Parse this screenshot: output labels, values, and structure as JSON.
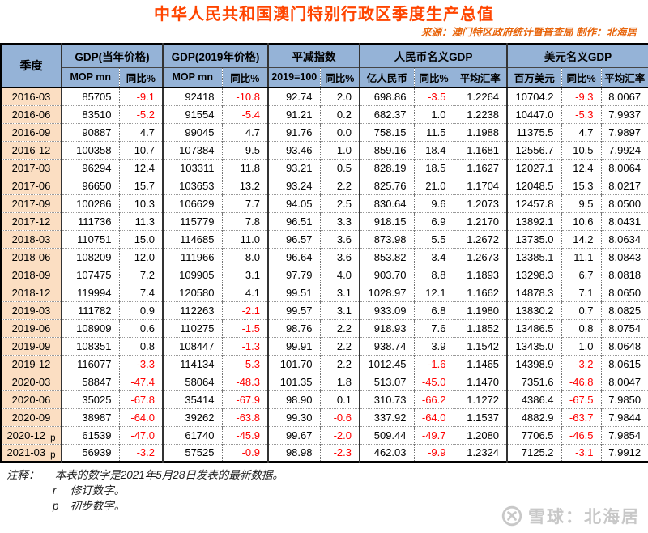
{
  "header": {
    "title": "中华人民共和国澳门特别行政区季度生产总值",
    "source_line": "来源：澳门特区政府统计暨普查局  制作：北海居"
  },
  "chart_data": {
    "type": "table",
    "title": "中华人民共和国澳门特别行政区季度生产总值",
    "quarter_header": "季度",
    "column_groups": [
      {
        "label": "GDP(当年价格)",
        "span": 2
      },
      {
        "label": "GDP(2019年价格)",
        "span": 2
      },
      {
        "label": "平减指数",
        "span": 2
      },
      {
        "label": "人民币名义GDP",
        "span": 3
      },
      {
        "label": "美元名义GDP",
        "span": 3
      }
    ],
    "columns": [
      "MOP mn",
      "同比%",
      "MOP mn",
      "同比%",
      "2019=100",
      "同比%",
      "亿人民币",
      "同比%",
      "平均汇率",
      "百万美元",
      "同比%",
      "平均汇率"
    ],
    "rows": [
      {
        "quarter": "2016-03",
        "flag": "",
        "values": [
          "85705",
          "-9.1",
          "92418",
          "-10.8",
          "92.74",
          "2.0",
          "698.86",
          "-3.5",
          "1.2264",
          "10704.2",
          "-9.3",
          "8.0067"
        ]
      },
      {
        "quarter": "2016-06",
        "flag": "",
        "values": [
          "83510",
          "-5.2",
          "91554",
          "-5.4",
          "91.21",
          "0.2",
          "682.37",
          "1.0",
          "1.2238",
          "10447.0",
          "-5.3",
          "7.9937"
        ]
      },
      {
        "quarter": "2016-09",
        "flag": "",
        "values": [
          "90887",
          "4.7",
          "99045",
          "4.7",
          "91.76",
          "0.0",
          "758.15",
          "11.5",
          "1.1988",
          "11375.5",
          "4.7",
          "7.9897"
        ]
      },
      {
        "quarter": "2016-12",
        "flag": "",
        "values": [
          "100358",
          "10.7",
          "107384",
          "9.5",
          "93.46",
          "1.0",
          "859.16",
          "18.4",
          "1.1681",
          "12556.7",
          "10.5",
          "7.9924"
        ]
      },
      {
        "quarter": "2017-03",
        "flag": "",
        "values": [
          "96294",
          "12.4",
          "103311",
          "11.8",
          "93.21",
          "0.5",
          "828.19",
          "18.5",
          "1.1627",
          "12027.1",
          "12.4",
          "8.0064"
        ]
      },
      {
        "quarter": "2017-06",
        "flag": "",
        "values": [
          "96650",
          "15.7",
          "103653",
          "13.2",
          "93.24",
          "2.2",
          "825.76",
          "21.0",
          "1.1704",
          "12048.5",
          "15.3",
          "8.0217"
        ]
      },
      {
        "quarter": "2017-09",
        "flag": "",
        "values": [
          "100286",
          "10.3",
          "106629",
          "7.7",
          "94.05",
          "2.5",
          "830.64",
          "9.6",
          "1.2073",
          "12457.8",
          "9.5",
          "8.0500"
        ]
      },
      {
        "quarter": "2017-12",
        "flag": "",
        "values": [
          "111736",
          "11.3",
          "115779",
          "7.8",
          "96.51",
          "3.3",
          "918.15",
          "6.9",
          "1.2170",
          "13892.1",
          "10.6",
          "8.0431"
        ]
      },
      {
        "quarter": "2018-03",
        "flag": "",
        "values": [
          "110751",
          "15.0",
          "114685",
          "11.0",
          "96.57",
          "3.6",
          "873.98",
          "5.5",
          "1.2672",
          "13735.0",
          "14.2",
          "8.0634"
        ]
      },
      {
        "quarter": "2018-06",
        "flag": "",
        "values": [
          "108209",
          "12.0",
          "111966",
          "8.0",
          "96.64",
          "3.6",
          "853.82",
          "3.4",
          "1.2673",
          "13385.1",
          "11.1",
          "8.0843"
        ]
      },
      {
        "quarter": "2018-09",
        "flag": "",
        "values": [
          "107475",
          "7.2",
          "109905",
          "3.1",
          "97.79",
          "4.0",
          "903.70",
          "8.8",
          "1.1893",
          "13298.3",
          "6.7",
          "8.0818"
        ]
      },
      {
        "quarter": "2018-12",
        "flag": "",
        "values": [
          "119994",
          "7.4",
          "120580",
          "4.1",
          "99.51",
          "3.1",
          "1028.97",
          "12.1",
          "1.1662",
          "14878.3",
          "7.1",
          "8.0650"
        ]
      },
      {
        "quarter": "2019-03",
        "flag": "",
        "values": [
          "111782",
          "0.9",
          "112263",
          "-2.1",
          "99.57",
          "3.1",
          "933.09",
          "6.8",
          "1.1980",
          "13830.2",
          "0.7",
          "8.0825"
        ]
      },
      {
        "quarter": "2019-06",
        "flag": "",
        "values": [
          "108909",
          "0.6",
          "110275",
          "-1.5",
          "98.76",
          "2.2",
          "918.93",
          "7.6",
          "1.1852",
          "13486.5",
          "0.8",
          "8.0754"
        ]
      },
      {
        "quarter": "2019-09",
        "flag": "",
        "values": [
          "108351",
          "0.8",
          "108447",
          "-1.3",
          "99.91",
          "2.2",
          "938.74",
          "3.9",
          "1.1542",
          "13435.0",
          "1.0",
          "8.0648"
        ]
      },
      {
        "quarter": "2019-12",
        "flag": "",
        "values": [
          "116077",
          "-3.3",
          "114134",
          "-5.3",
          "101.70",
          "2.2",
          "1012.45",
          "-1.6",
          "1.1465",
          "14398.9",
          "-3.2",
          "8.0615"
        ]
      },
      {
        "quarter": "2020-03",
        "flag": "",
        "values": [
          "58847",
          "-47.4",
          "58064",
          "-48.3",
          "101.35",
          "1.8",
          "513.07",
          "-45.0",
          "1.1470",
          "7351.6",
          "-46.8",
          "8.0047"
        ]
      },
      {
        "quarter": "2020-06",
        "flag": "",
        "values": [
          "35025",
          "-67.8",
          "35414",
          "-67.9",
          "98.90",
          "0.1",
          "310.73",
          "-66.2",
          "1.1272",
          "4386.4",
          "-67.5",
          "7.9850"
        ]
      },
      {
        "quarter": "2020-09",
        "flag": "",
        "values": [
          "38987",
          "-64.0",
          "39262",
          "-63.8",
          "99.30",
          "-0.6",
          "337.92",
          "-64.0",
          "1.1537",
          "4882.9",
          "-63.7",
          "7.9844"
        ]
      },
      {
        "quarter": "2020-12",
        "flag": "p",
        "values": [
          "61539",
          "-47.0",
          "61740",
          "-45.9",
          "99.67",
          "-2.0",
          "509.44",
          "-49.7",
          "1.2080",
          "7706.5",
          "-46.5",
          "7.9854"
        ]
      },
      {
        "quarter": "2021-03",
        "flag": "p",
        "values": [
          "56939",
          "-3.2",
          "57525",
          "-0.9",
          "98.98",
          "-2.3",
          "462.03",
          "-9.9",
          "1.2324",
          "7125.2",
          "-3.1",
          "7.9912"
        ]
      }
    ]
  },
  "notes": {
    "label": "注释：",
    "line1": "本表的数字是2021年5月28日发表的最新数据。",
    "marker_r": "r",
    "text_r": "修订数字。",
    "marker_p": "p",
    "text_p": "初步数字。"
  },
  "watermark": {
    "text": "雪球：北海居"
  },
  "colors": {
    "title_color": "#ff4500",
    "source_color": "#e8650c",
    "header_bg": "#95b3d7",
    "quarter_bg": "#fbdec2",
    "negative_color": "#ff0000",
    "watermark_color": "#c8c8c8"
  }
}
